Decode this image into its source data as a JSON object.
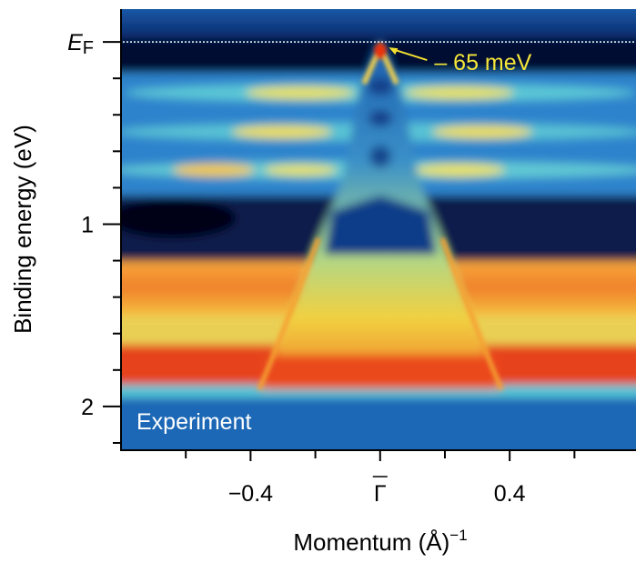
{
  "chart_data": {
    "type": "heatmap",
    "y_label": "Binding energy (eV)",
    "x_label": "Momentum (Å)",
    "x_label_superscript": "−1",
    "xlim": [
      -0.8,
      0.79
    ],
    "ylim": [
      -0.18,
      2.24
    ],
    "y_inverted": true,
    "xticks": [
      {
        "value": -0.4,
        "label": "−0.4"
      },
      {
        "value": 0,
        "label": "Γ"
      },
      {
        "value": 0.4,
        "label": "0.4"
      }
    ],
    "x_minor_ticks": [
      -0.6,
      -0.2,
      0.2,
      0.6
    ],
    "yticks": [
      {
        "value": 0,
        "label": "E",
        "label_subscript": "F"
      },
      1,
      2
    ],
    "y_minor_ticks": [
      0.2,
      0.4,
      0.6,
      0.8,
      1.2,
      1.4,
      1.6,
      1.8,
      2.2
    ],
    "reference_line": 0,
    "annotations": [
      {
        "text": "– 65 meV",
        "x": 0.01,
        "y": 0.03
      }
    ],
    "inset_label": "Experiment"
  }
}
